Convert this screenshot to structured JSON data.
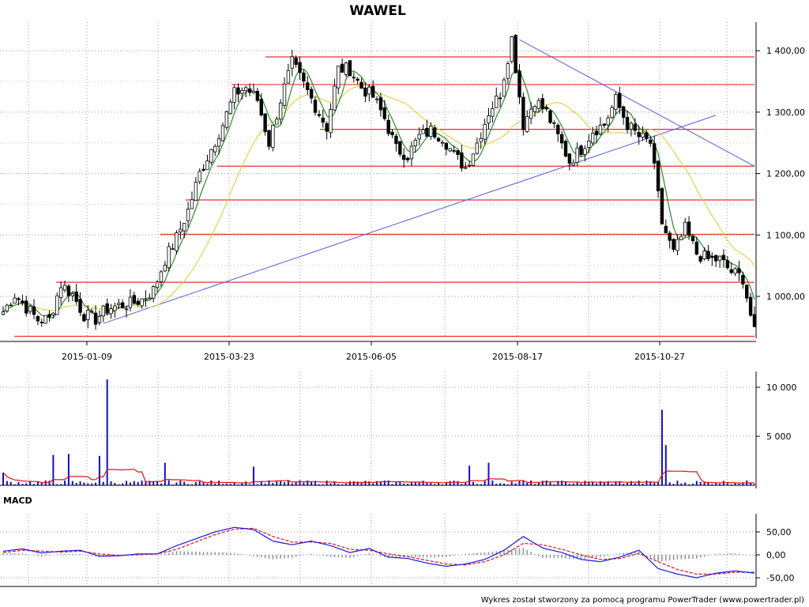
{
  "title": "WAWEL",
  "footer": "Wykres został stworzony za pomocą programu PowerTrader (www.powertrader.pl)",
  "chart_data": [
    {
      "panel": "price",
      "type": "candlestick",
      "title": "WAWEL",
      "x_tick_labels": [
        "2015-01-09",
        "2015-03-23",
        "2015-06-05",
        "2015-08-17",
        "2015-10-27"
      ],
      "y_tick_labels": [
        "1 000,00",
        "1 100,00",
        "1 200,00",
        "1 300,00",
        "1 400,00"
      ],
      "ylim": [
        935,
        1430
      ],
      "grid": true,
      "close_path": [
        [
          0,
          975
        ],
        [
          3,
          1003
        ],
        [
          6,
          982
        ],
        [
          9,
          962
        ],
        [
          12,
          963
        ],
        [
          15,
          1020
        ],
        [
          18,
          1003
        ],
        [
          21,
          970
        ],
        [
          24,
          963
        ],
        [
          27,
          980
        ],
        [
          30,
          985
        ],
        [
          33,
          988
        ],
        [
          36,
          995
        ],
        [
          39,
          1010
        ],
        [
          42,
          1060
        ],
        [
          45,
          1095
        ],
        [
          48,
          1140
        ],
        [
          51,
          1200
        ],
        [
          54,
          1240
        ],
        [
          57,
          1280
        ],
        [
          60,
          1330
        ],
        [
          63,
          1340
        ],
        [
          66,
          1320
        ],
        [
          69,
          1250
        ],
        [
          72,
          1320
        ],
        [
          75,
          1380
        ],
        [
          78,
          1345
        ],
        [
          81,
          1310
        ],
        [
          84,
          1275
        ],
        [
          87,
          1370
        ],
        [
          90,
          1370
        ],
        [
          93,
          1340
        ],
        [
          96,
          1325
        ],
        [
          99,
          1290
        ],
        [
          102,
          1240
        ],
        [
          105,
          1230
        ],
        [
          108,
          1260
        ],
        [
          111,
          1270
        ],
        [
          114,
          1260
        ],
        [
          117,
          1230
        ],
        [
          120,
          1210
        ],
        [
          123,
          1250
        ],
        [
          126,
          1300
        ],
        [
          129,
          1330
        ],
        [
          132,
          1420
        ],
        [
          135,
          1280
        ],
        [
          138,
          1320
        ],
        [
          141,
          1300
        ],
        [
          144,
          1260
        ],
        [
          147,
          1220
        ],
        [
          150,
          1240
        ],
        [
          153,
          1270
        ],
        [
          156,
          1280
        ],
        [
          159,
          1320
        ],
        [
          162,
          1280
        ],
        [
          165,
          1260
        ],
        [
          168,
          1250
        ],
        [
          171,
          1120
        ],
        [
          174,
          1070
        ],
        [
          177,
          1110
        ],
        [
          180,
          1070
        ],
        [
          183,
          1060
        ],
        [
          186,
          1060
        ],
        [
          189,
          1040
        ],
        [
          192,
          1030
        ],
        [
          195,
          940
        ]
      ],
      "horizontal_levels": [
        1390,
        1345,
        1272,
        1212,
        1157,
        1101,
        1023,
        935
      ],
      "trendlines": [
        {
          "from": [
            26,
            956
          ],
          "to": [
            185,
            1295
          ]
        },
        {
          "from": [
            134,
            1418
          ],
          "to": [
            195,
            1212
          ]
        }
      ],
      "moving_averages": [
        "fast (green)",
        "slow (yellow)"
      ],
      "colors": {
        "candle_up": "#ffffff",
        "candle_down": "#000000",
        "level_line": "#e83030",
        "trendline": "#5a5ae6",
        "ma_fast": "#2a8a2a",
        "ma_slow": "#e6d24a"
      }
    },
    {
      "panel": "volume",
      "type": "bar",
      "y_tick_labels": [
        "5 000",
        "10 000"
      ],
      "ylim": [
        0,
        11000
      ],
      "spikes": [
        [
          27,
          10800
        ],
        [
          171,
          7700
        ],
        [
          172,
          4100
        ],
        [
          0,
          1300
        ],
        [
          13,
          3100
        ],
        [
          17,
          3200
        ],
        [
          25,
          3000
        ],
        [
          42,
          2300
        ],
        [
          65,
          1900
        ],
        [
          121,
          2000
        ],
        [
          126,
          2300
        ]
      ],
      "base_level": 300,
      "average_line_level": 600,
      "colors": {
        "bar": "#1010cc",
        "average": "#e81010"
      }
    },
    {
      "panel": "macd",
      "type": "line",
      "label": "MACD",
      "y_tick_labels": [
        "-50,00",
        "0,00",
        "50,00"
      ],
      "ylim": [
        -60,
        70
      ],
      "macd": [
        [
          0,
          8
        ],
        [
          5,
          13
        ],
        [
          10,
          4
        ],
        [
          15,
          8
        ],
        [
          20,
          10
        ],
        [
          25,
          -3
        ],
        [
          30,
          -2
        ],
        [
          35,
          2
        ],
        [
          40,
          2
        ],
        [
          45,
          20
        ],
        [
          50,
          35
        ],
        [
          55,
          50
        ],
        [
          60,
          60
        ],
        [
          65,
          55
        ],
        [
          70,
          30
        ],
        [
          75,
          22
        ],
        [
          80,
          30
        ],
        [
          85,
          20
        ],
        [
          90,
          5
        ],
        [
          95,
          14
        ],
        [
          100,
          -5
        ],
        [
          105,
          -8
        ],
        [
          110,
          -18
        ],
        [
          115,
          -25
        ],
        [
          120,
          -20
        ],
        [
          125,
          -10
        ],
        [
          130,
          10
        ],
        [
          135,
          40
        ],
        [
          140,
          15
        ],
        [
          145,
          5
        ],
        [
          150,
          -10
        ],
        [
          155,
          -15
        ],
        [
          160,
          -5
        ],
        [
          165,
          10
        ],
        [
          170,
          -30
        ],
        [
          175,
          -42
        ],
        [
          180,
          -50
        ],
        [
          185,
          -40
        ],
        [
          190,
          -35
        ],
        [
          195,
          -40
        ]
      ],
      "signal": [
        [
          0,
          5
        ],
        [
          5,
          10
        ],
        [
          10,
          8
        ],
        [
          15,
          6
        ],
        [
          20,
          8
        ],
        [
          25,
          2
        ],
        [
          30,
          -1
        ],
        [
          35,
          0
        ],
        [
          40,
          2
        ],
        [
          45,
          12
        ],
        [
          50,
          28
        ],
        [
          55,
          44
        ],
        [
          60,
          56
        ],
        [
          65,
          58
        ],
        [
          70,
          40
        ],
        [
          75,
          28
        ],
        [
          80,
          28
        ],
        [
          85,
          25
        ],
        [
          90,
          12
        ],
        [
          95,
          10
        ],
        [
          100,
          2
        ],
        [
          105,
          -4
        ],
        [
          110,
          -12
        ],
        [
          115,
          -20
        ],
        [
          120,
          -22
        ],
        [
          125,
          -15
        ],
        [
          130,
          0
        ],
        [
          135,
          25
        ],
        [
          140,
          22
        ],
        [
          145,
          12
        ],
        [
          150,
          0
        ],
        [
          155,
          -10
        ],
        [
          160,
          -8
        ],
        [
          165,
          3
        ],
        [
          170,
          -15
        ],
        [
          175,
          -32
        ],
        [
          180,
          -42
        ],
        [
          185,
          -42
        ],
        [
          190,
          -38
        ],
        [
          195,
          -38
        ]
      ],
      "colors": {
        "macd": "#1818e6",
        "signal": "#e81010",
        "histogram": "#8c9aa8"
      }
    }
  ]
}
